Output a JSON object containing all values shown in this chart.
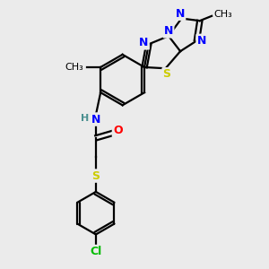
{
  "bg_color": "#ebebeb",
  "bond_color": "#000000",
  "bond_width": 1.6,
  "atom_colors": {
    "N": "#0000ff",
    "S": "#cccc00",
    "O": "#ff0000",
    "Cl": "#00bb00",
    "H": "#4a9090",
    "C": "#000000"
  },
  "fs": 9,
  "fs_small": 8,
  "fs_methyl": 8
}
